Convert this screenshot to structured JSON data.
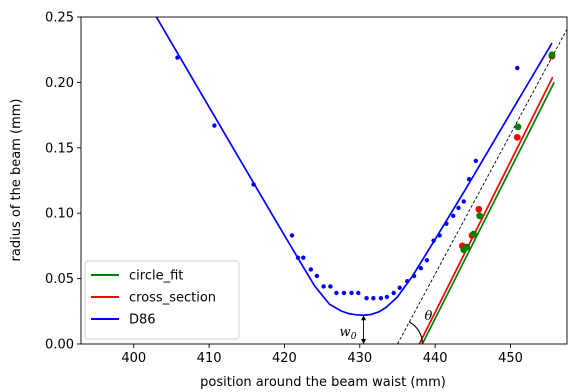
{
  "chart_data": {
    "type": "scatter",
    "xlabel": "position around the beam waist (mm)",
    "ylabel": "radius of the beam (mm)",
    "xlim": [
      393,
      457.5
    ],
    "ylim": [
      0,
      0.25
    ],
    "xticks": [
      400,
      410,
      420,
      430,
      440,
      450
    ],
    "yticks": [
      0.0,
      0.05,
      0.1,
      0.15,
      0.2,
      0.25
    ],
    "xtick_labels": [
      "400",
      "410",
      "420",
      "430",
      "440",
      "450"
    ],
    "ytick_labels": [
      "0.00",
      "0.05",
      "0.10",
      "0.15",
      "0.20",
      "0.25"
    ],
    "grid": false,
    "legend_position": "lower-left",
    "colors": {
      "circle_fit": "#008000",
      "cross_section": "#ff0000",
      "D86": "#0000ff",
      "asymptote": "#000000"
    },
    "series": [
      {
        "name": "circle_fit",
        "color": "#008000",
        "points": [
          [
            443.8,
            0.072
          ],
          [
            444.2,
            0.074
          ],
          [
            445.1,
            0.084
          ],
          [
            445.9,
            0.098
          ],
          [
            451.0,
            0.166
          ],
          [
            455.5,
            0.221
          ]
        ],
        "fit": [
          [
            438.3,
            0.0
          ],
          [
            455.8,
            0.2
          ]
        ]
      },
      {
        "name": "cross_section",
        "color": "#ff0000",
        "points": [
          [
            443.6,
            0.075
          ],
          [
            444.9,
            0.083
          ],
          [
            445.8,
            0.103
          ],
          [
            450.9,
            0.158
          ],
          [
            455.5,
            0.22
          ]
        ],
        "fit": [
          [
            437.9,
            0.0
          ],
          [
            455.6,
            0.204
          ]
        ]
      },
      {
        "name": "D86",
        "color": "#0000ff",
        "points": [
          [
            405.8,
            0.219
          ],
          [
            410.7,
            0.167
          ],
          [
            415.9,
            0.122
          ],
          [
            421.0,
            0.083
          ],
          [
            421.8,
            0.066
          ],
          [
            422.5,
            0.066
          ],
          [
            423.5,
            0.057
          ],
          [
            424.3,
            0.052
          ],
          [
            425.2,
            0.044
          ],
          [
            426.1,
            0.044
          ],
          [
            426.9,
            0.039
          ],
          [
            427.9,
            0.039
          ],
          [
            428.9,
            0.039
          ],
          [
            429.8,
            0.039
          ],
          [
            430.9,
            0.035
          ],
          [
            431.8,
            0.035
          ],
          [
            432.8,
            0.035
          ],
          [
            433.6,
            0.036
          ],
          [
            434.5,
            0.039
          ],
          [
            435.3,
            0.043
          ],
          [
            436.3,
            0.048
          ],
          [
            437.2,
            0.052
          ],
          [
            438.1,
            0.058
          ],
          [
            438.9,
            0.064
          ],
          [
            439.8,
            0.079
          ],
          [
            440.6,
            0.083
          ],
          [
            441.5,
            0.092
          ],
          [
            442.4,
            0.098
          ],
          [
            443.1,
            0.104
          ],
          [
            443.8,
            0.109
          ],
          [
            444.5,
            0.126
          ],
          [
            445.4,
            0.14
          ],
          [
            450.9,
            0.211
          ],
          [
            455.5,
            0.222
          ]
        ],
        "fit": [
          [
            403.0,
            0.25
          ],
          [
            406.0,
            0.2205
          ],
          [
            409.0,
            0.191
          ],
          [
            412.0,
            0.1615
          ],
          [
            415.0,
            0.132
          ],
          [
            418.0,
            0.1026
          ],
          [
            421.0,
            0.0733
          ],
          [
            424.0,
            0.0444
          ],
          [
            426.0,
            0.0303
          ],
          [
            427.5,
            0.0253
          ],
          [
            428.5,
            0.0233
          ],
          [
            429.5,
            0.0223
          ],
          [
            430.5,
            0.022
          ],
          [
            431.5,
            0.0226
          ],
          [
            432.5,
            0.0245
          ],
          [
            433.5,
            0.028
          ],
          [
            435.0,
            0.036
          ],
          [
            437.0,
            0.052
          ],
          [
            440.0,
            0.08
          ],
          [
            444.0,
            0.118
          ],
          [
            448.0,
            0.157
          ],
          [
            452.0,
            0.196
          ],
          [
            455.5,
            0.23
          ]
        ]
      }
    ],
    "asymptote": [
      [
        435.0,
        0.0
      ],
      [
        458.0,
        0.246
      ]
    ],
    "annotations": [
      {
        "text": "w",
        "sub": "0",
        "x": 430.5,
        "y": 0.022
      },
      {
        "text": "θ",
        "x": 437.0,
        "y": 0.0
      }
    ]
  }
}
